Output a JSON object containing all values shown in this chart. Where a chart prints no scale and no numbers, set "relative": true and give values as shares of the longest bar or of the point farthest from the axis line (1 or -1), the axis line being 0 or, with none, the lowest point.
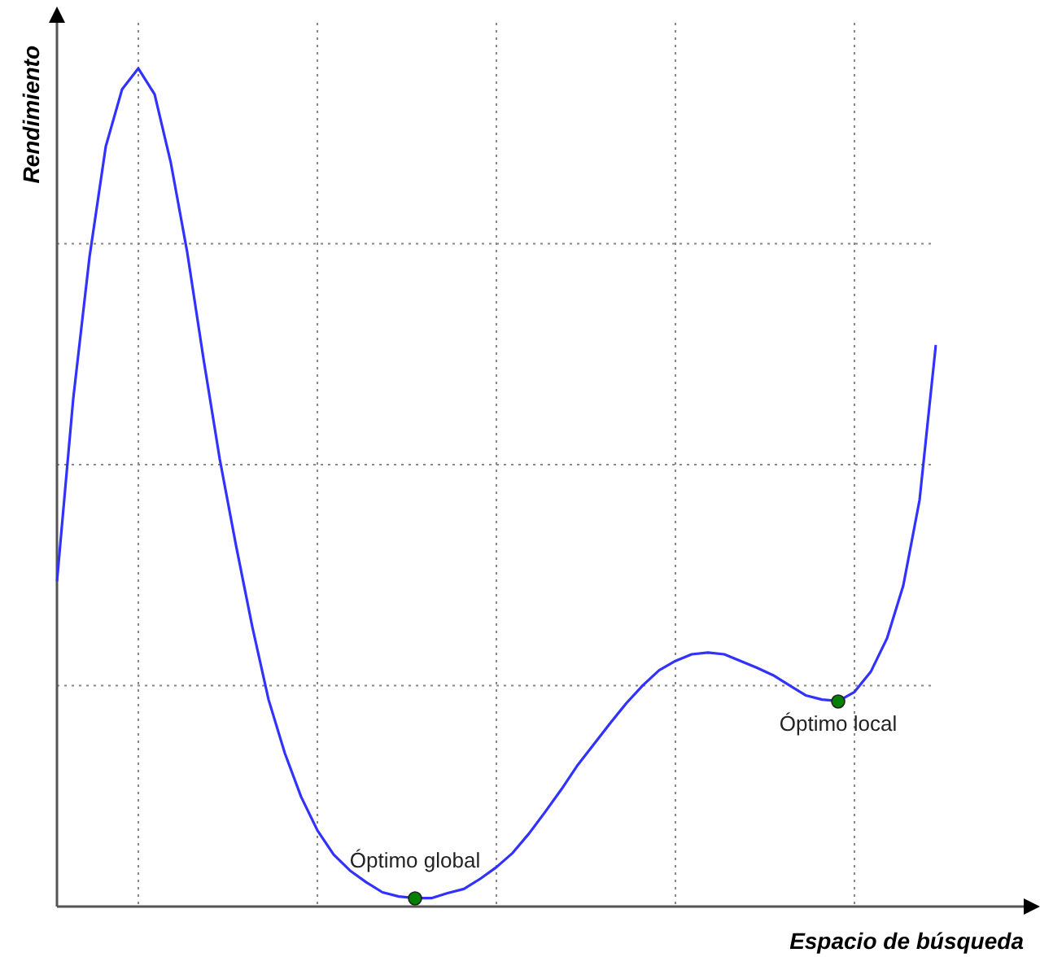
{
  "chart_data": {
    "type": "line",
    "relative": true,
    "xlabel": "Espacio de búsqueda",
    "ylabel": "Rendimiento",
    "grid": true,
    "categories": [
      null,
      null,
      null,
      null,
      null,
      null,
      null,
      null,
      null,
      null,
      null,
      null,
      null,
      null,
      null,
      null,
      null,
      null,
      null,
      null,
      null,
      null,
      null,
      null,
      null,
      null,
      null,
      null,
      null,
      null,
      null,
      null,
      null,
      null,
      null,
      null,
      null,
      null,
      null,
      null,
      null,
      null,
      null,
      null,
      null,
      null,
      null,
      null,
      null,
      null,
      null,
      null,
      null,
      null,
      null
    ],
    "series": [
      {
        "type": "line",
        "color": "#3232ff",
        "marker": "none",
        "values": [
          0.388,
          0.606,
          0.775,
          0.907,
          0.975,
          1,
          0.969,
          0.887,
          0.781,
          0.654,
          0.534,
          0.431,
          0.334,
          0.247,
          0.183,
          0.131,
          0.091,
          0.062,
          0.043,
          0.029,
          0.017,
          0.012,
          0.01,
          0.01,
          0.016,
          0.021,
          0.033,
          0.047,
          0.064,
          0.087,
          0.113,
          0.14,
          0.169,
          0.194,
          0.219,
          0.243,
          0.264,
          0.282,
          0.293,
          0.301,
          0.303,
          0.301,
          0.293,
          0.285,
          0.276,
          0.264,
          0.252,
          0.247,
          0.245,
          0.256,
          0.28,
          0.32,
          0.383,
          0.485,
          0.67
        ]
      }
    ],
    "annotations": [
      "Óptimo global",
      "Óptimo local"
    ]
  }
}
